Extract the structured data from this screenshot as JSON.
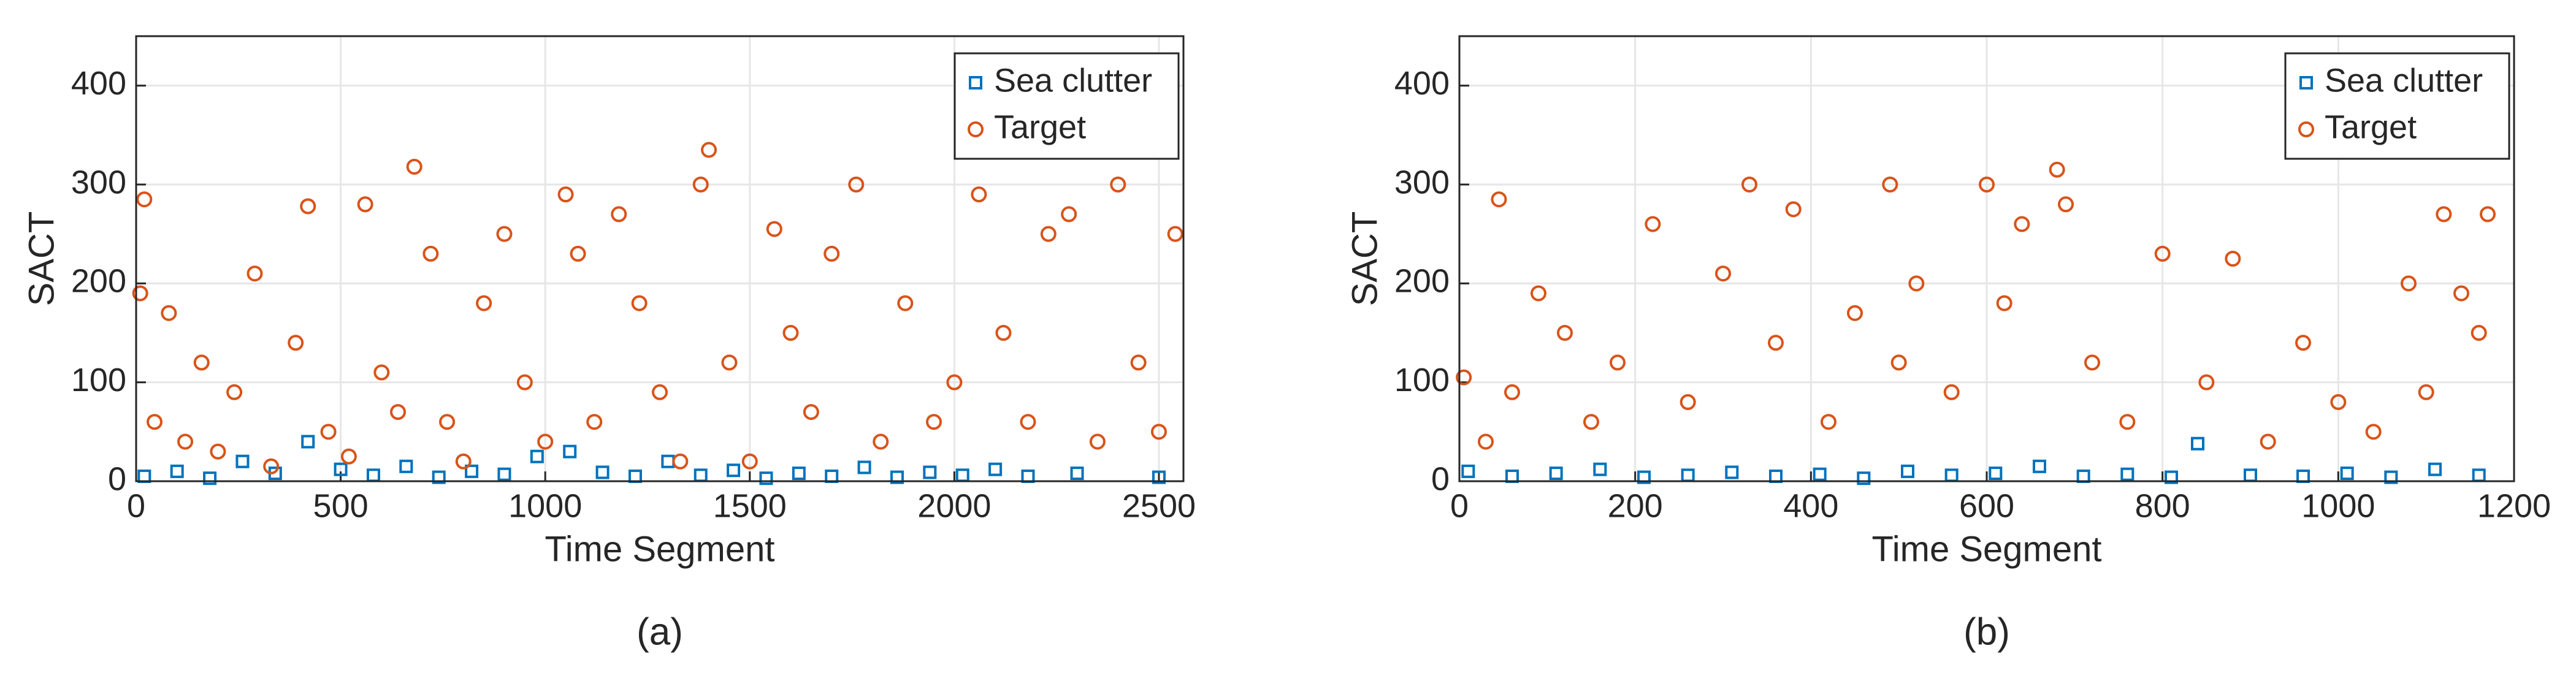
{
  "chart_data": [
    {
      "type": "scatter",
      "caption": "(a)",
      "x_label": "Time Segment",
      "y_label": "SACT",
      "xlim": [
        0,
        2560
      ],
      "ylim": [
        0,
        450
      ],
      "xticks": [
        0,
        500,
        1000,
        1500,
        2000,
        2500
      ],
      "yticks": [
        0,
        100,
        200,
        300,
        400
      ],
      "grid": true,
      "legend": "top-right",
      "series": [
        {
          "name": "Sea clutter",
          "color": "#0072bd",
          "marker": "square",
          "x": [
            20,
            100,
            180,
            260,
            340,
            420,
            500,
            580,
            660,
            740,
            820,
            900,
            980,
            1060,
            1140,
            1220,
            1300,
            1380,
            1460,
            1540,
            1620,
            1700,
            1780,
            1860,
            1940,
            2020,
            2100,
            2180,
            2300,
            2500
          ],
          "values": [
            5,
            10,
            3,
            20,
            8,
            40,
            12,
            6,
            15,
            4,
            10,
            7,
            25,
            30,
            9,
            5,
            20,
            6,
            11,
            3,
            8,
            5,
            14,
            4,
            9,
            6,
            12,
            5,
            8,
            4
          ]
        },
        {
          "name": "Target",
          "color": "#d95319",
          "marker": "circle",
          "x": [
            10,
            20,
            45,
            80,
            120,
            160,
            200,
            240,
            290,
            330,
            390,
            420,
            470,
            520,
            560,
            600,
            640,
            680,
            720,
            760,
            800,
            850,
            900,
            950,
            1000,
            1050,
            1080,
            1120,
            1180,
            1230,
            1280,
            1330,
            1380,
            1400,
            1450,
            1500,
            1560,
            1600,
            1650,
            1700,
            1760,
            1820,
            1880,
            1950,
            2000,
            2060,
            2120,
            2180,
            2230,
            2280,
            2350,
            2400,
            2450,
            2500,
            2540
          ],
          "values": [
            190,
            285,
            60,
            170,
            40,
            120,
            30,
            90,
            210,
            15,
            140,
            278,
            50,
            25,
            280,
            110,
            70,
            318,
            230,
            60,
            20,
            180,
            250,
            100,
            40,
            290,
            230,
            60,
            270,
            180,
            90,
            20,
            300,
            335,
            120,
            20,
            255,
            150,
            70,
            230,
            300,
            40,
            180,
            60,
            100,
            290,
            150,
            60,
            250,
            270,
            40,
            300,
            120,
            50,
            250
          ]
        }
      ]
    },
    {
      "type": "scatter",
      "caption": "(b)",
      "x_label": "Time Segment",
      "y_label": "SACT",
      "xlim": [
        0,
        1200
      ],
      "ylim": [
        0,
        450
      ],
      "xticks": [
        0,
        200,
        400,
        600,
        800,
        1000,
        1200
      ],
      "yticks": [
        0,
        100,
        200,
        300,
        400
      ],
      "grid": true,
      "legend": "top-right",
      "series": [
        {
          "name": "Sea clutter",
          "color": "#0072bd",
          "marker": "square",
          "x": [
            10,
            60,
            110,
            160,
            210,
            260,
            310,
            360,
            410,
            460,
            510,
            560,
            610,
            660,
            710,
            760,
            810,
            840,
            900,
            960,
            1010,
            1060,
            1110,
            1160
          ],
          "values": [
            10,
            5,
            8,
            12,
            4,
            6,
            9,
            5,
            7,
            3,
            10,
            6,
            8,
            15,
            5,
            7,
            4,
            38,
            6,
            5,
            8,
            4,
            12,
            6
          ]
        },
        {
          "name": "Target",
          "color": "#d95319",
          "marker": "circle",
          "x": [
            5,
            30,
            45,
            60,
            90,
            120,
            150,
            180,
            220,
            260,
            300,
            330,
            360,
            380,
            420,
            450,
            490,
            500,
            520,
            560,
            600,
            620,
            640,
            680,
            690,
            720,
            760,
            800,
            850,
            880,
            920,
            960,
            1000,
            1040,
            1080,
            1100,
            1120,
            1140,
            1160,
            1170
          ],
          "values": [
            105,
            40,
            285,
            90,
            190,
            150,
            60,
            120,
            260,
            80,
            210,
            300,
            140,
            275,
            60,
            170,
            300,
            120,
            200,
            90,
            300,
            180,
            260,
            315,
            280,
            120,
            60,
            230,
            100,
            225,
            40,
            140,
            80,
            50,
            200,
            90,
            270,
            190,
            150,
            270
          ]
        }
      ]
    }
  ]
}
